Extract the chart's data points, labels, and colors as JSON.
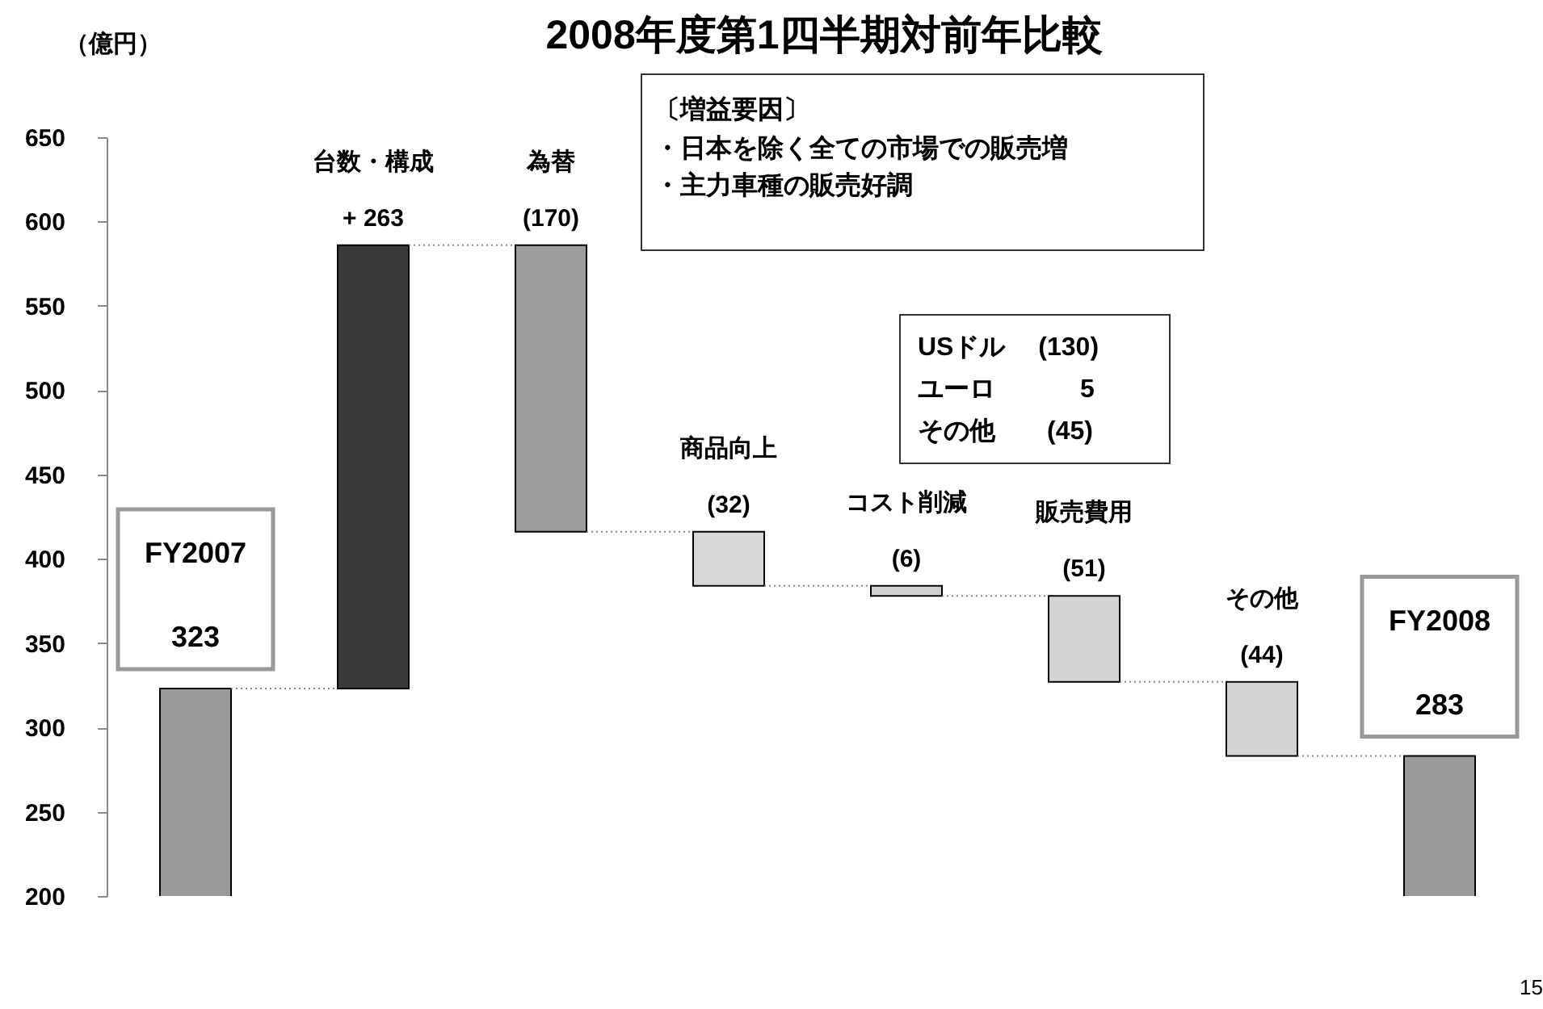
{
  "chart_data": {
    "type": "bar",
    "title": "2008年度第1四半期対前年比較",
    "ylabel": "（億円）",
    "categories": [
      "FY2007",
      "台数・構成",
      "為替",
      "商品向上",
      "コスト削減",
      "販売費用",
      "その他",
      "FY2008"
    ],
    "values": [
      323,
      263,
      -170,
      -32,
      -6,
      -51,
      -44,
      283
    ],
    "base": [
      0,
      323,
      586,
      416,
      384,
      378,
      327,
      0
    ],
    "colors": [
      "#9a9a9a",
      "#3a3a3a",
      "#9c9c9c",
      "#d8d8d8",
      "#d0d0d0",
      "#d4d4d4",
      "#d4d4d4",
      "#9a9a9a"
    ],
    "value_labels": [
      "323",
      "+ 263",
      "(170)",
      "(32)",
      "(6)",
      "(51)",
      "(44)",
      "283"
    ],
    "ylim": [
      200,
      650
    ],
    "yticks": [
      200,
      250,
      300,
      350,
      400,
      450,
      500,
      550,
      600,
      650
    ],
    "grid": false,
    "annotations": [
      "〔増益要因〕",
      "・日本を除く全ての市場での販売増",
      "・主力車種の販売好調",
      "USドル　 (130)",
      "ユーロ　　　 5",
      "その他　　(45)",
      "15"
    ]
  }
}
